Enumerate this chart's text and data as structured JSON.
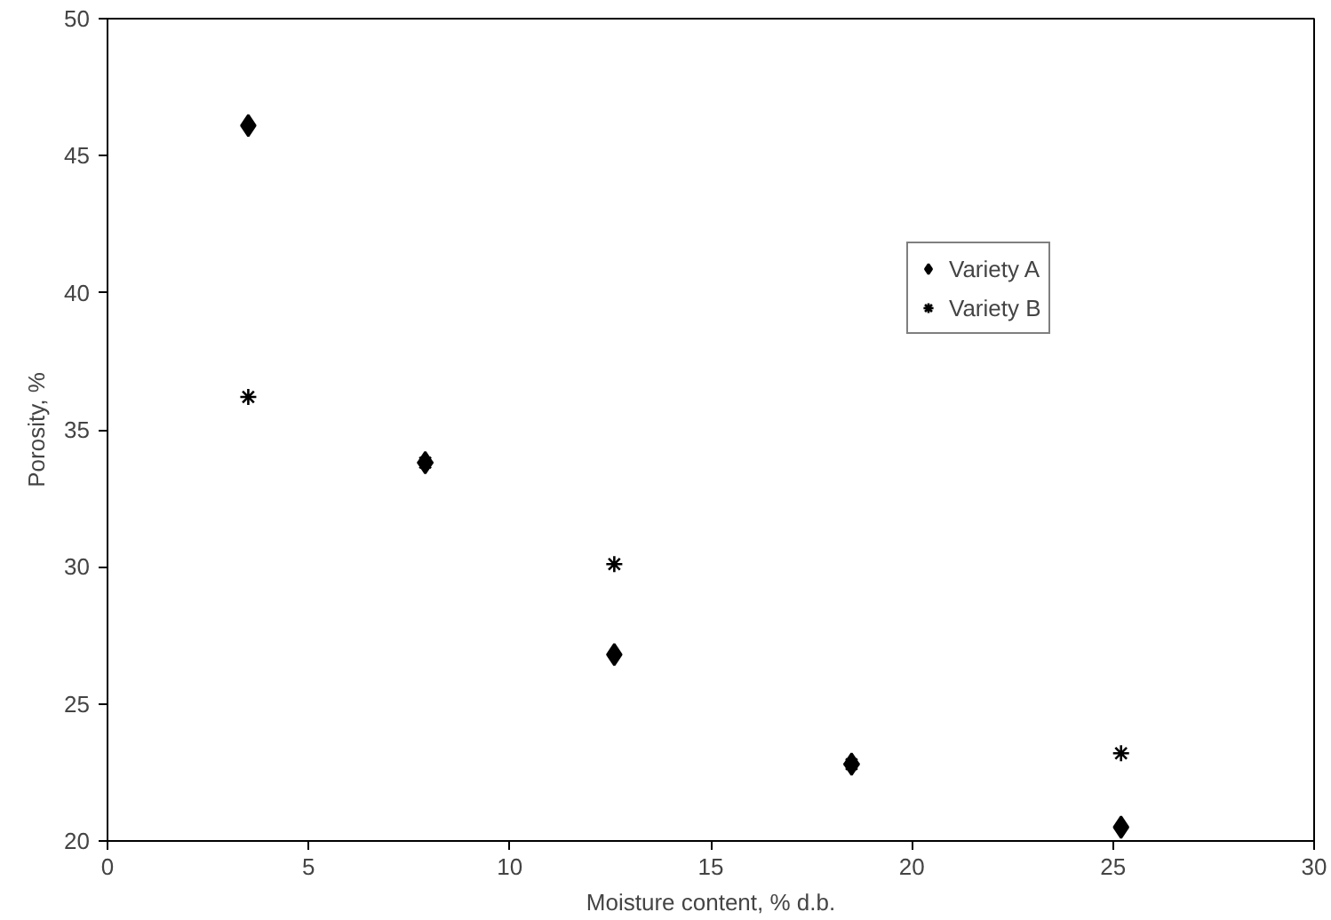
{
  "chart_data": {
    "type": "scatter",
    "xlabel": "Moisture content, % d.b.",
    "ylabel": "Porosity, %",
    "xlim": [
      0,
      30
    ],
    "xticks": [
      0,
      5,
      10,
      15,
      20,
      25,
      30
    ],
    "ylim": [
      20,
      50
    ],
    "yticks": [
      20,
      25,
      30,
      35,
      40,
      45,
      50
    ],
    "grid": false,
    "legend": "top right",
    "series": [
      {
        "name": "Variety A",
        "color": "#000000",
        "marker": "diamond",
        "x": [
          3.5,
          7.9,
          12.6,
          18.5,
          25.2
        ],
        "values": [
          46.1,
          33.8,
          26.8,
          22.8,
          20.5
        ]
      },
      {
        "name": "Variety B",
        "color": "#000000",
        "marker": "cross",
        "x": [
          3.5,
          7.9,
          12.6,
          18.5,
          25.2
        ],
        "values": [
          36.2,
          33.8,
          30.1,
          22.8,
          23.2
        ]
      }
    ]
  }
}
